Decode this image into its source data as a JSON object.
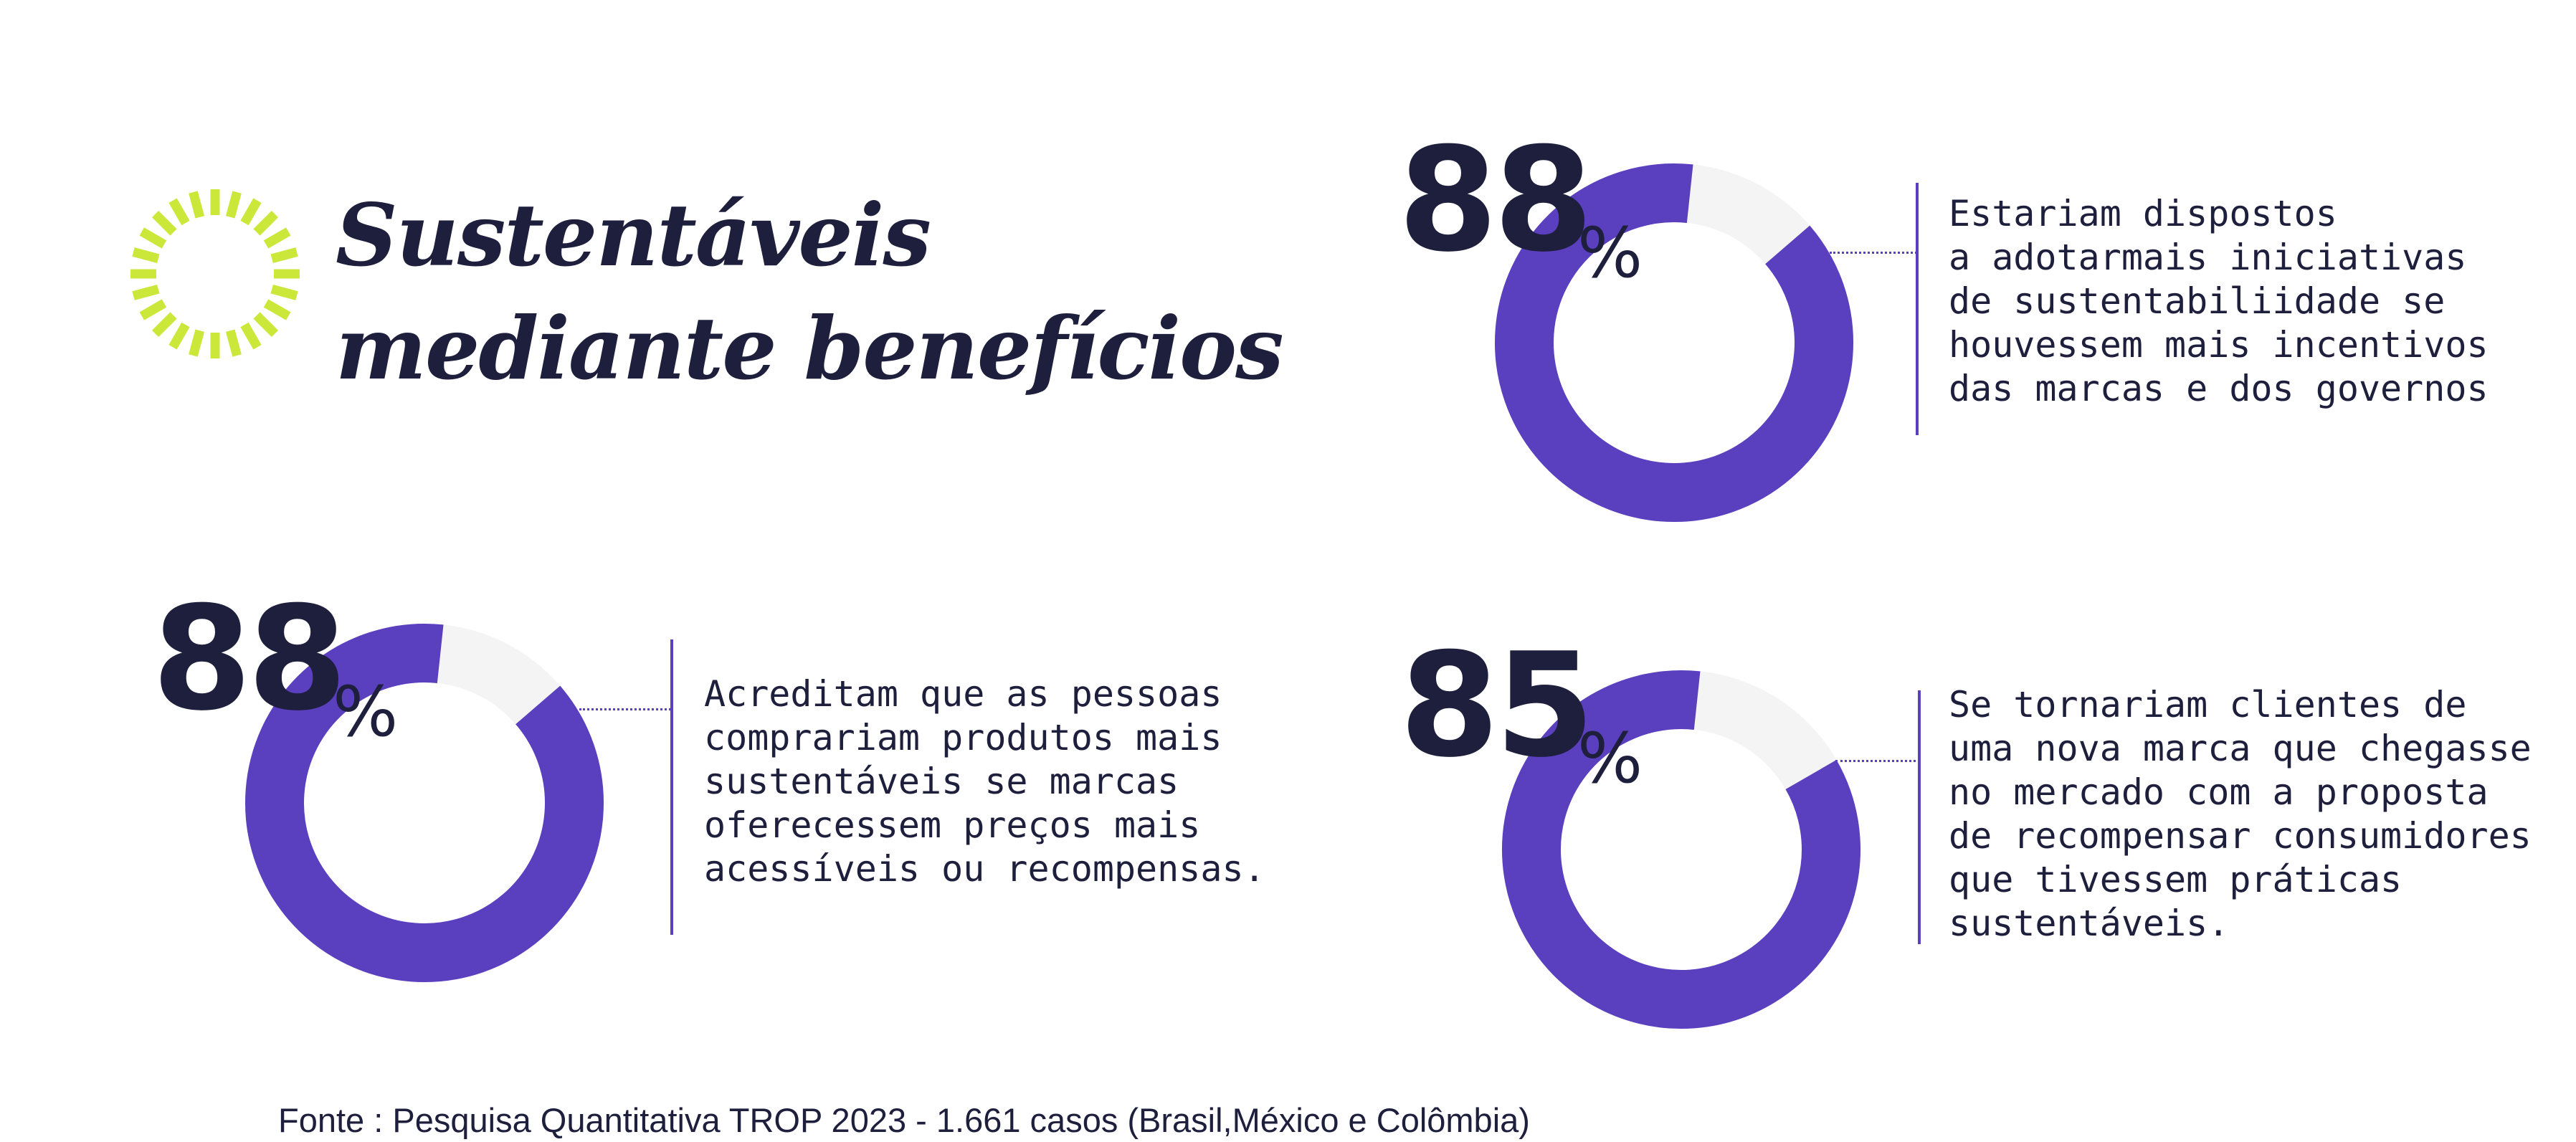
{
  "title": {
    "line1": "Sustentáveis",
    "line2": "mediante benefícios"
  },
  "colors": {
    "accent": "#5a3fbf",
    "remainder": "#f4f4f4",
    "text": "#1e1f3c",
    "icon": "#cbe83a"
  },
  "icons": {
    "title_icon": "sun-burst-icon"
  },
  "chart_data": [
    {
      "type": "pie",
      "variant": "donut",
      "values": [
        88,
        12
      ],
      "value_label": "88",
      "unit": "%",
      "description": [
        "Estariam dispostos",
        "a adotarmais iniciativas",
        "de sustentabiliidade se",
        "houvessem mais incentivos",
        "das marcas e dos governos"
      ]
    },
    {
      "type": "pie",
      "variant": "donut",
      "values": [
        88,
        12
      ],
      "value_label": "88",
      "unit": "%",
      "description": [
        "Acreditam que as pessoas",
        "comprariam produtos mais",
        "sustentáveis se marcas",
        "oferecessem preços mais",
        "acessíveis ou recompensas."
      ]
    },
    {
      "type": "pie",
      "variant": "donut",
      "values": [
        85,
        15
      ],
      "value_label": "85",
      "unit": "%",
      "description": [
        "Se tornariam clientes de",
        "uma nova marca que chegasse",
        "no mercado com a proposta",
        "de recompensar consumidores",
        "que tivessem práticas",
        "sustentáveis."
      ]
    }
  ],
  "source": "Fonte : Pesquisa Quantitativa TROP 2023 - 1.661 casos (Brasil,México e Colômbia)"
}
